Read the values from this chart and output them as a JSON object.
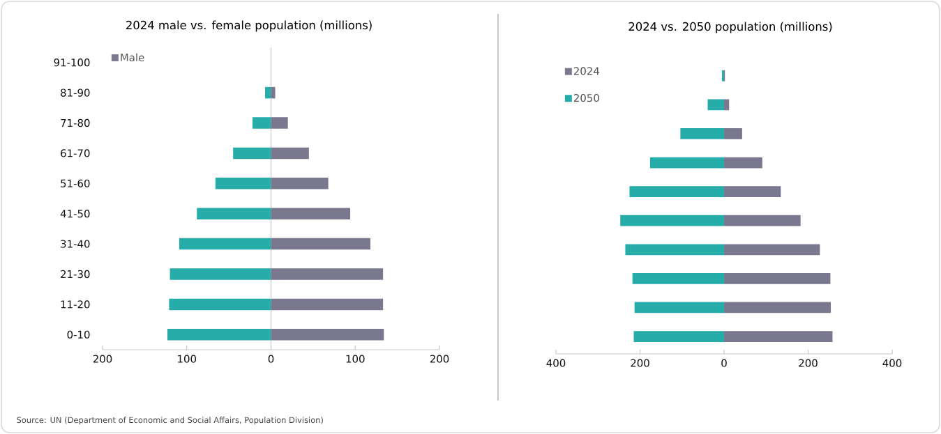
{
  "chart_data": [
    {
      "type": "bar",
      "orientation": "horizontal",
      "stacked": true,
      "title": "2024 male vs. female population (millions)",
      "categories": [
        "91-100",
        "81-90",
        "71-80",
        "61-70",
        "51-60",
        "41-50",
        "31-40",
        "21-30",
        "11-20",
        "0-10"
      ],
      "series": [
        {
          "name": "Male",
          "color": "#7a788f",
          "values": [
            0,
            5,
            20,
            45,
            68,
            94,
            118,
            133,
            133,
            134
          ]
        },
        {
          "color": "#26ada9",
          "values": [
            0,
            -7,
            -22,
            -45,
            -66,
            -88,
            -109,
            -120,
            -121,
            -123
          ]
        }
      ],
      "xlim": [
        -200,
        200
      ],
      "xticks": [
        {
          "value": -200,
          "label": "200"
        },
        {
          "value": -100,
          "label": "100"
        },
        0,
        100,
        200
      ],
      "legend": "top left",
      "annotations": [
        "Source: UN (Department of Economic and Social Affairs, Population Division)"
      ]
    },
    {
      "type": "bar",
      "orientation": "horizontal",
      "stacked": true,
      "title": "2024 vs. 2050 population (millions)",
      "categories": [
        null,
        null,
        null,
        null,
        null,
        null,
        null,
        null,
        null,
        null
      ],
      "series": [
        {
          "name": "2024",
          "color": "#7a788f",
          "values": [
            2,
            12,
            43,
            91,
            135,
            182,
            228,
            253,
            254,
            258
          ]
        },
        {
          "name": "2050",
          "color": "#26ada9",
          "values": [
            -5,
            -39,
            -104,
            -176,
            -225,
            -247,
            -235,
            -218,
            -213,
            -215
          ]
        }
      ],
      "xlim": [
        -400,
        400
      ],
      "xticks": [
        {
          "value": -400,
          "label": "400"
        },
        {
          "value": -200,
          "label": "200"
        },
        0,
        200,
        400
      ],
      "legend": "top left",
      "tick_labels": "x"
    }
  ]
}
